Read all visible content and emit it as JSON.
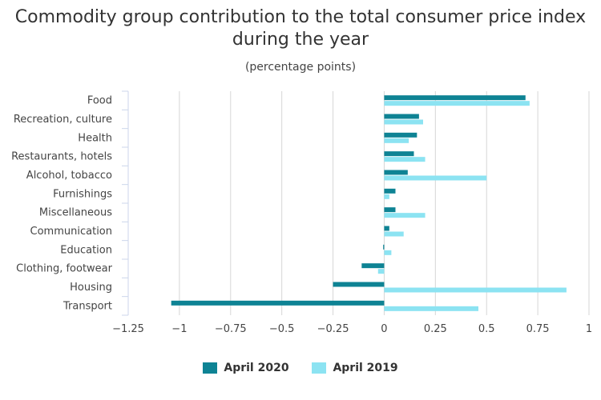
{
  "chart_data": {
    "type": "bar",
    "orientation": "horizontal",
    "title": "Commodity group contribution to the total consumer price index during the year",
    "subtitle": "(percentage points)",
    "categories": [
      "Food",
      "Recreation, culture",
      "Health",
      "Restaurants, hotels",
      "Alcohol, tobacco",
      "Furnishings",
      "Miscellaneous",
      "Communication",
      "Education",
      "Clothing, footwear",
      "Housing",
      "Transport"
    ],
    "series": [
      {
        "name": "April 2020",
        "color": "#0e8394",
        "values": [
          0.69,
          0.17,
          0.16,
          0.145,
          0.115,
          0.055,
          0.055,
          0.025,
          -0.005,
          -0.11,
          -0.25,
          -1.04
        ]
      },
      {
        "name": "April 2019",
        "color": "#8ce3f2",
        "values": [
          0.71,
          0.19,
          0.12,
          0.2,
          0.5,
          0.025,
          0.2,
          0.095,
          0.035,
          -0.03,
          0.89,
          0.46
        ]
      }
    ],
    "xlim": [
      -1.25,
      1
    ],
    "xticks": [
      "−1.25",
      "−1",
      "−0.75",
      "−0.5",
      "−0.25",
      "0",
      "0.25",
      "0.5",
      "0.75",
      "1"
    ],
    "tick_values": [
      -1.25,
      -1,
      -0.75,
      -0.5,
      -0.25,
      0,
      0.25,
      0.5,
      0.75,
      1
    ],
    "grid": true,
    "legend_position": "bottom"
  }
}
